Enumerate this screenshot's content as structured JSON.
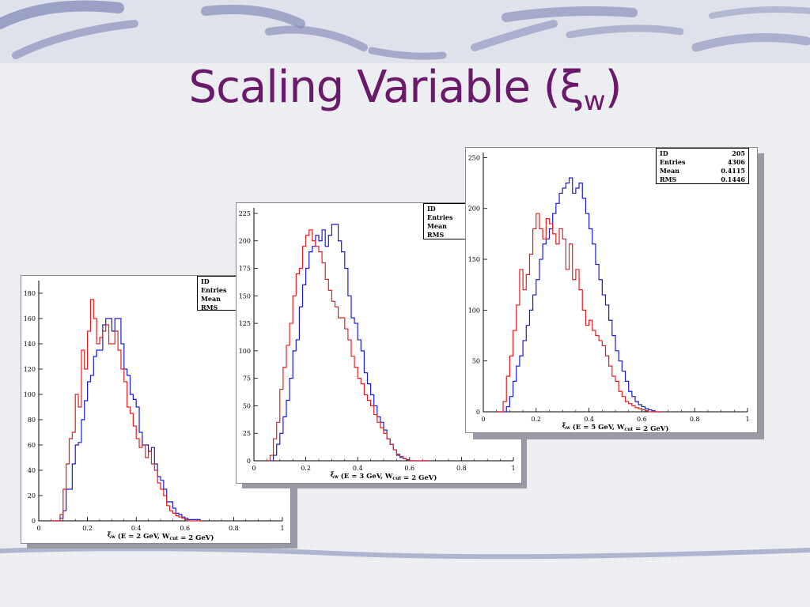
{
  "slide": {
    "title_main": "Scaling Variable (ξ",
    "title_sub": "w",
    "title_end": ")"
  },
  "colors": {
    "title": "#6b1a6b",
    "series_blue": "#1a1ad4",
    "series_red": "#e02020"
  },
  "chart_data": [
    {
      "type": "histogram",
      "xlabel": "ξw (E = 2 GeV, Wcut = 2 GeV)",
      "xlim": [
        0,
        1
      ],
      "ylim": [
        0,
        190
      ],
      "xticks": [
        0,
        0.2,
        0.4,
        0.6,
        0.8,
        1
      ],
      "yticks": [
        0,
        20,
        40,
        60,
        80,
        100,
        120,
        140,
        160,
        180
      ],
      "stats": [
        {
          "label": "ID",
          "value": ""
        },
        {
          "label": "Entries",
          "value": ""
        },
        {
          "label": "Mean",
          "value": ""
        },
        {
          "label": "RMS",
          "value": ""
        }
      ],
      "bin_width": 0.0125,
      "x_start": 0.05,
      "series": [
        {
          "color": "blue",
          "values": [
            0,
            0,
            0,
            2,
            8,
            25,
            25,
            45,
            60,
            62,
            80,
            95,
            110,
            115,
            130,
            135,
            135,
            155,
            160,
            160,
            150,
            160,
            160,
            140,
            120,
            115,
            100,
            96,
            90,
            70,
            60,
            60,
            55,
            58,
            45,
            35,
            32,
            25,
            15,
            15,
            10,
            6,
            5,
            3,
            2,
            1,
            1,
            1,
            1,
            0
          ]
        },
        {
          "color": "red",
          "values": [
            0,
            0,
            0,
            5,
            25,
            45,
            65,
            70,
            100,
            90,
            135,
            120,
            150,
            175,
            160,
            140,
            145,
            150,
            155,
            140,
            140,
            150,
            135,
            120,
            110,
            90,
            85,
            75,
            65,
            58,
            60,
            50,
            55,
            45,
            40,
            30,
            25,
            20,
            12,
            8,
            6,
            4,
            3,
            2,
            1,
            0,
            0,
            0,
            0,
            0
          ]
        }
      ]
    },
    {
      "type": "histogram",
      "xlabel": "ξw (E = 3 GeV, Wcut = 2 GeV)",
      "xlim": [
        0,
        1
      ],
      "ylim": [
        0,
        230
      ],
      "xticks": [
        0,
        0.2,
        0.4,
        0.6,
        0.8,
        1
      ],
      "yticks": [
        0,
        25,
        50,
        75,
        100,
        125,
        150,
        175,
        200,
        225
      ],
      "stats": [
        {
          "label": "ID",
          "value": ""
        },
        {
          "label": "Entries",
          "value": ""
        },
        {
          "label": "Mean",
          "value": ""
        },
        {
          "label": "RMS",
          "value": ""
        }
      ],
      "bin_width": 0.0125,
      "x_start": 0.05,
      "series": [
        {
          "color": "blue",
          "values": [
            0,
            0,
            5,
            15,
            25,
            40,
            55,
            75,
            100,
            110,
            140,
            160,
            175,
            190,
            195,
            205,
            200,
            210,
            195,
            205,
            215,
            215,
            200,
            190,
            175,
            150,
            130,
            125,
            110,
            100,
            80,
            70,
            60,
            50,
            40,
            35,
            28,
            20,
            15,
            10,
            5,
            3,
            2,
            1,
            0,
            0,
            0,
            0,
            0,
            0
          ]
        },
        {
          "color": "red",
          "values": [
            0,
            5,
            20,
            35,
            65,
            85,
            105,
            125,
            150,
            170,
            175,
            195,
            205,
            210,
            200,
            195,
            190,
            180,
            165,
            155,
            145,
            140,
            130,
            130,
            120,
            110,
            95,
            85,
            75,
            70,
            60,
            55,
            50,
            42,
            35,
            30,
            25,
            20,
            15,
            10,
            6,
            4,
            2,
            1,
            0,
            0,
            0,
            0,
            0,
            0
          ]
        }
      ]
    },
    {
      "type": "histogram",
      "xlabel": "ξw (E = 5 GeV, Wcut = 2 GeV)",
      "xlim": [
        0,
        1
      ],
      "ylim": [
        0,
        255
      ],
      "xticks": [
        0,
        0.2,
        0.4,
        0.6,
        0.8,
        1
      ],
      "yticks": [
        0,
        50,
        100,
        150,
        200,
        250
      ],
      "stats": [
        {
          "label": "ID",
          "value": "205"
        },
        {
          "label": "Entries",
          "value": "4306"
        },
        {
          "label": "Mean",
          "value": "0.4115"
        },
        {
          "label": "RMS",
          "value": "0.1446"
        }
      ],
      "bin_width": 0.0125,
      "x_start": 0.05,
      "series": [
        {
          "color": "blue",
          "values": [
            0,
            0,
            0,
            5,
            15,
            30,
            45,
            55,
            70,
            85,
            100,
            115,
            130,
            150,
            165,
            170,
            180,
            195,
            205,
            215,
            220,
            225,
            230,
            215,
            220,
            225,
            210,
            195,
            180,
            165,
            145,
            130,
            115,
            105,
            90,
            75,
            60,
            50,
            40,
            30,
            20,
            15,
            10,
            7,
            5,
            3,
            2,
            1,
            0,
            0
          ]
        },
        {
          "color": "red",
          "values": [
            0,
            0,
            10,
            35,
            55,
            80,
            105,
            140,
            120,
            135,
            155,
            180,
            195,
            180,
            170,
            190,
            185,
            175,
            165,
            180,
            170,
            140,
            165,
            130,
            140,
            120,
            100,
            85,
            90,
            80,
            75,
            70,
            65,
            55,
            45,
            35,
            30,
            20,
            15,
            10,
            8,
            6,
            4,
            3,
            2,
            1,
            0,
            0,
            0,
            0
          ]
        }
      ]
    }
  ]
}
